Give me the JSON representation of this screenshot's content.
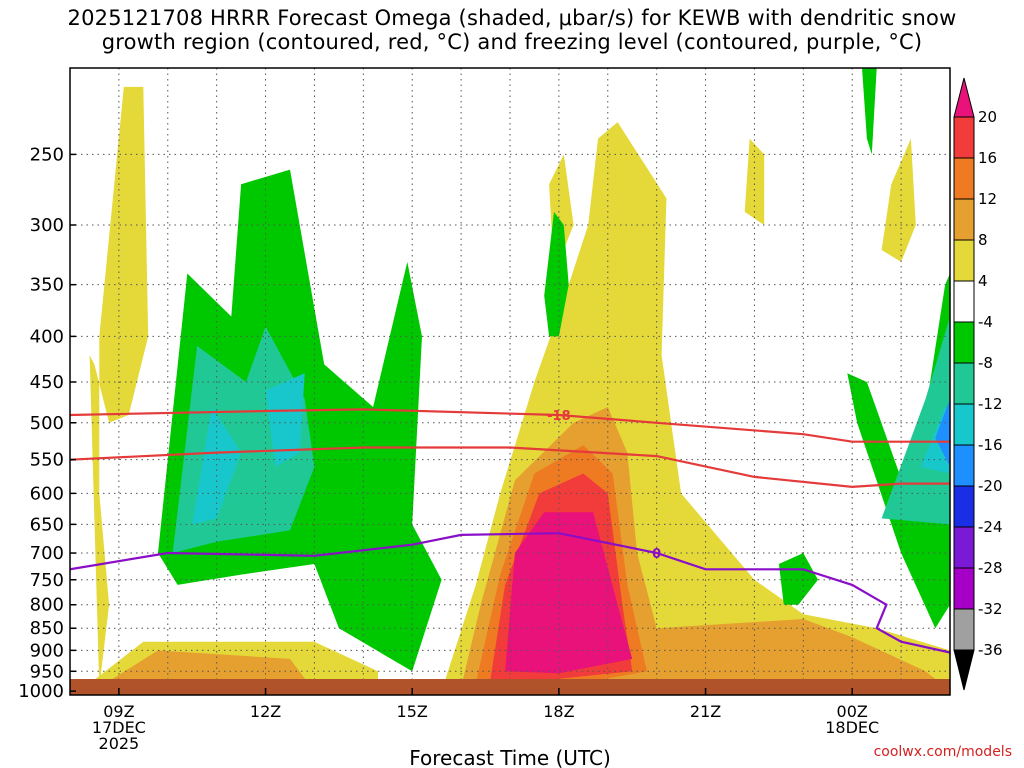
{
  "title": {
    "line1": "2025121708 HRRR Forecast Omega (shaded, μbar/s) for KEWB with dendritic snow",
    "line2": "growth region (contoured, red, °C) and freezing level (contoured, purple, °C)"
  },
  "credit": "coolwx.com/models",
  "chart_data": {
    "type": "heatmap",
    "xlabel": "Forecast Time (UTC)",
    "ylabel": "",
    "x_ticks": [
      {
        "hour": 9,
        "lines": [
          "09Z",
          "17DEC",
          "2025"
        ]
      },
      {
        "hour": 12,
        "lines": [
          "12Z"
        ]
      },
      {
        "hour": 15,
        "lines": [
          "15Z"
        ]
      },
      {
        "hour": 18,
        "lines": [
          "18Z"
        ]
      },
      {
        "hour": 21,
        "lines": [
          "21Z"
        ]
      },
      {
        "hour": 24,
        "lines": [
          "00Z",
          "18DEC"
        ]
      }
    ],
    "x_range_hours": [
      8,
      26
    ],
    "y_ticks": [
      250,
      300,
      350,
      400,
      450,
      500,
      550,
      600,
      650,
      700,
      750,
      800,
      850,
      900,
      950,
      1000
    ],
    "y_scale": "log-pressure",
    "y_range_hPa": [
      1010,
      200
    ],
    "colorbar": {
      "labels": [
        20,
        16,
        12,
        8,
        4,
        -4,
        -8,
        -12,
        -16,
        -20,
        -24,
        -28,
        -32,
        -36
      ],
      "colors": {
        "gt20": "#e8127a",
        "16_20": "#f23b3b",
        "12_16": "#ee7a22",
        "8_12": "#e5a030",
        "4_8": "#e4d939",
        "m4_4": "#ffffff",
        "m8_m4": "#00c800",
        "m12_m8": "#20c896",
        "m16_m12": "#18c7cc",
        "m20_m16": "#1e8fff",
        "m24_m20": "#1a2ee6",
        "m28_m24": "#7a1ad6",
        "m32_m28": "#a600c8",
        "m36_m32": "#a0a0a0",
        "lt_m36": "#000000"
      }
    },
    "contours": [
      {
        "label": "-18",
        "color": "#e53a3a",
        "points": [
          [
            8,
            490
          ],
          [
            12,
            485
          ],
          [
            14,
            483
          ],
          [
            18,
            490
          ],
          [
            20,
            500
          ],
          [
            23,
            515
          ],
          [
            24,
            525
          ],
          [
            26,
            525
          ]
        ]
      },
      {
        "label": "",
        "color": "#e53a3a",
        "points": [
          [
            8,
            550
          ],
          [
            11,
            540
          ],
          [
            14,
            533
          ],
          [
            17,
            533
          ],
          [
            20,
            545
          ],
          [
            22,
            575
          ],
          [
            24,
            590
          ],
          [
            25,
            585
          ],
          [
            26,
            585
          ]
        ]
      },
      {
        "label": "0",
        "color": "#8a0ec8",
        "points": [
          [
            8,
            730
          ],
          [
            10,
            700
          ],
          [
            13,
            705
          ],
          [
            15,
            685
          ],
          [
            16,
            668
          ],
          [
            18,
            665
          ],
          [
            20,
            700
          ],
          [
            21,
            730
          ],
          [
            23,
            730
          ],
          [
            24,
            760
          ],
          [
            24.7,
            800
          ],
          [
            24.5,
            850
          ],
          [
            25,
            880
          ],
          [
            26,
            905
          ]
        ]
      }
    ],
    "ground_color": "#b0522a",
    "omega_regions": [
      {
        "level": "4_8",
        "t": [
          [
            8.6,
            990
          ],
          [
            8.8,
            800
          ],
          [
            8.6,
            600
          ],
          [
            8.6,
            400
          ],
          [
            9.1,
            210
          ],
          [
            9.5,
            210
          ],
          [
            9.6,
            400
          ],
          [
            9.2,
            490
          ],
          [
            8.8,
            500
          ],
          [
            8.5,
            430
          ],
          [
            8.4,
            420
          ]
        ]
      },
      {
        "level": "4_8",
        "t": [
          [
            8.2,
            1000
          ],
          [
            9.5,
            880
          ],
          [
            13,
            880
          ],
          [
            14.3,
            950
          ],
          [
            14.3,
            1000
          ]
        ]
      },
      {
        "level": "8_12",
        "t": [
          [
            8.6,
            990
          ],
          [
            9.8,
            900
          ],
          [
            12.5,
            920
          ],
          [
            13,
            1000
          ]
        ]
      },
      {
        "level": "4_8",
        "t": [
          [
            15.6,
            1000
          ],
          [
            16.3,
            760
          ],
          [
            16.8,
            600
          ],
          [
            17.5,
            450
          ],
          [
            18.2,
            350
          ],
          [
            18.6,
            300
          ],
          [
            18.8,
            240
          ],
          [
            19.2,
            230
          ],
          [
            20.2,
            280
          ],
          [
            20.1,
            420
          ],
          [
            20.5,
            600
          ],
          [
            22,
            750
          ],
          [
            23,
            820
          ],
          [
            24.5,
            850
          ],
          [
            26,
            900
          ],
          [
            26,
            1000
          ]
        ]
      },
      {
        "level": "4_8",
        "t": [
          [
            17.8,
            270
          ],
          [
            18.1,
            250
          ],
          [
            18.3,
            300
          ],
          [
            17.9,
            340
          ]
        ]
      },
      {
        "level": "4_8",
        "t": [
          [
            24.6,
            320
          ],
          [
            24.8,
            270
          ],
          [
            25.2,
            240
          ],
          [
            25.3,
            300
          ],
          [
            25.0,
            330
          ]
        ]
      },
      {
        "level": "4_8",
        "t": [
          [
            21.8,
            290
          ],
          [
            21.9,
            240
          ],
          [
            22.2,
            250
          ],
          [
            22.2,
            300
          ]
        ]
      },
      {
        "level": "8_12",
        "t": [
          [
            16,
            990
          ],
          [
            16.4,
            800
          ],
          [
            17.1,
            580
          ],
          [
            18.3,
            500
          ],
          [
            19,
            480
          ],
          [
            19.4,
            540
          ],
          [
            19.6,
            700
          ],
          [
            20,
            850
          ],
          [
            23,
            830
          ],
          [
            24,
            870
          ],
          [
            25.5,
            950
          ],
          [
            26,
            1000
          ]
        ]
      },
      {
        "level": "12_16",
        "t": [
          [
            16.3,
            980
          ],
          [
            16.8,
            740
          ],
          [
            17.5,
            570
          ],
          [
            18.5,
            530
          ],
          [
            19.1,
            570
          ],
          [
            19.4,
            760
          ],
          [
            19.8,
            950
          ],
          [
            18,
            990
          ]
        ]
      },
      {
        "level": "16_20",
        "t": [
          [
            16.6,
            970
          ],
          [
            16.9,
            760
          ],
          [
            17.6,
            600
          ],
          [
            18.5,
            570
          ],
          [
            19.0,
            600
          ],
          [
            19.3,
            800
          ],
          [
            19.5,
            950
          ],
          [
            17.5,
            975
          ]
        ]
      },
      {
        "level": "gt20",
        "t": [
          [
            16.9,
            950
          ],
          [
            17.1,
            700
          ],
          [
            17.7,
            630
          ],
          [
            18.7,
            630
          ],
          [
            19.2,
            800
          ],
          [
            19.5,
            920
          ],
          [
            18.0,
            955
          ]
        ]
      },
      {
        "level": "m8_m4",
        "t": [
          [
            9.8,
            700
          ],
          [
            10.4,
            340
          ],
          [
            11.3,
            380
          ],
          [
            11.5,
            270
          ],
          [
            12.5,
            260
          ],
          [
            13.2,
            430
          ],
          [
            14.2,
            480
          ],
          [
            14.9,
            330
          ],
          [
            15.2,
            400
          ],
          [
            15,
            650
          ],
          [
            15.6,
            750
          ],
          [
            15,
            950
          ],
          [
            13.5,
            850
          ],
          [
            13,
            720
          ],
          [
            11.5,
            740
          ],
          [
            10.2,
            760
          ]
        ]
      },
      {
        "level": "m8_m4",
        "t": [
          [
            17.7,
            360
          ],
          [
            17.9,
            290
          ],
          [
            18.1,
            300
          ],
          [
            18.2,
            350
          ],
          [
            18.0,
            400
          ],
          [
            17.8,
            400
          ]
        ]
      },
      {
        "level": "m8_m4",
        "t": [
          [
            22.6,
            800
          ],
          [
            22.5,
            720
          ],
          [
            23.0,
            700
          ],
          [
            23.3,
            750
          ],
          [
            22.9,
            800
          ]
        ]
      },
      {
        "level": "m8_m4",
        "t": [
          [
            24.3,
            240
          ],
          [
            24.2,
            200
          ],
          [
            24.5,
            200
          ],
          [
            24.4,
            250
          ]
        ]
      },
      {
        "level": "m8_m4",
        "t": [
          [
            23.9,
            440
          ],
          [
            24.3,
            450
          ],
          [
            25.2,
            620
          ],
          [
            25.9,
            350
          ],
          [
            26,
            340
          ],
          [
            26,
            800
          ],
          [
            25.7,
            850
          ],
          [
            25.0,
            700
          ],
          [
            24.1,
            500
          ]
        ]
      },
      {
        "level": "m12_m8",
        "t": [
          [
            10.1,
            700
          ],
          [
            10.6,
            410
          ],
          [
            11.6,
            450
          ],
          [
            12,
            390
          ],
          [
            12.8,
            470
          ],
          [
            13.0,
            560
          ],
          [
            12.5,
            660
          ],
          [
            11,
            680
          ]
        ]
      },
      {
        "level": "m12_m8",
        "t": [
          [
            24.6,
            640
          ],
          [
            25.5,
            470
          ],
          [
            26,
            380
          ],
          [
            26,
            650
          ]
        ]
      },
      {
        "level": "m16_m12",
        "t": [
          [
            10.5,
            650
          ],
          [
            10.9,
            480
          ],
          [
            11.5,
            540
          ],
          [
            11.0,
            640
          ]
        ]
      },
      {
        "level": "m16_m12",
        "t": [
          [
            12.2,
            560
          ],
          [
            12.0,
            460
          ],
          [
            12.8,
            440
          ],
          [
            12.7,
            540
          ]
        ]
      },
      {
        "level": "m16_m12",
        "t": [
          [
            25.4,
            560
          ],
          [
            25.9,
            480
          ],
          [
            26,
            500
          ],
          [
            26,
            570
          ]
        ]
      },
      {
        "level": "m20_m16",
        "t": [
          [
            25.7,
            520
          ],
          [
            26,
            470
          ],
          [
            26,
            560
          ]
        ]
      }
    ]
  }
}
